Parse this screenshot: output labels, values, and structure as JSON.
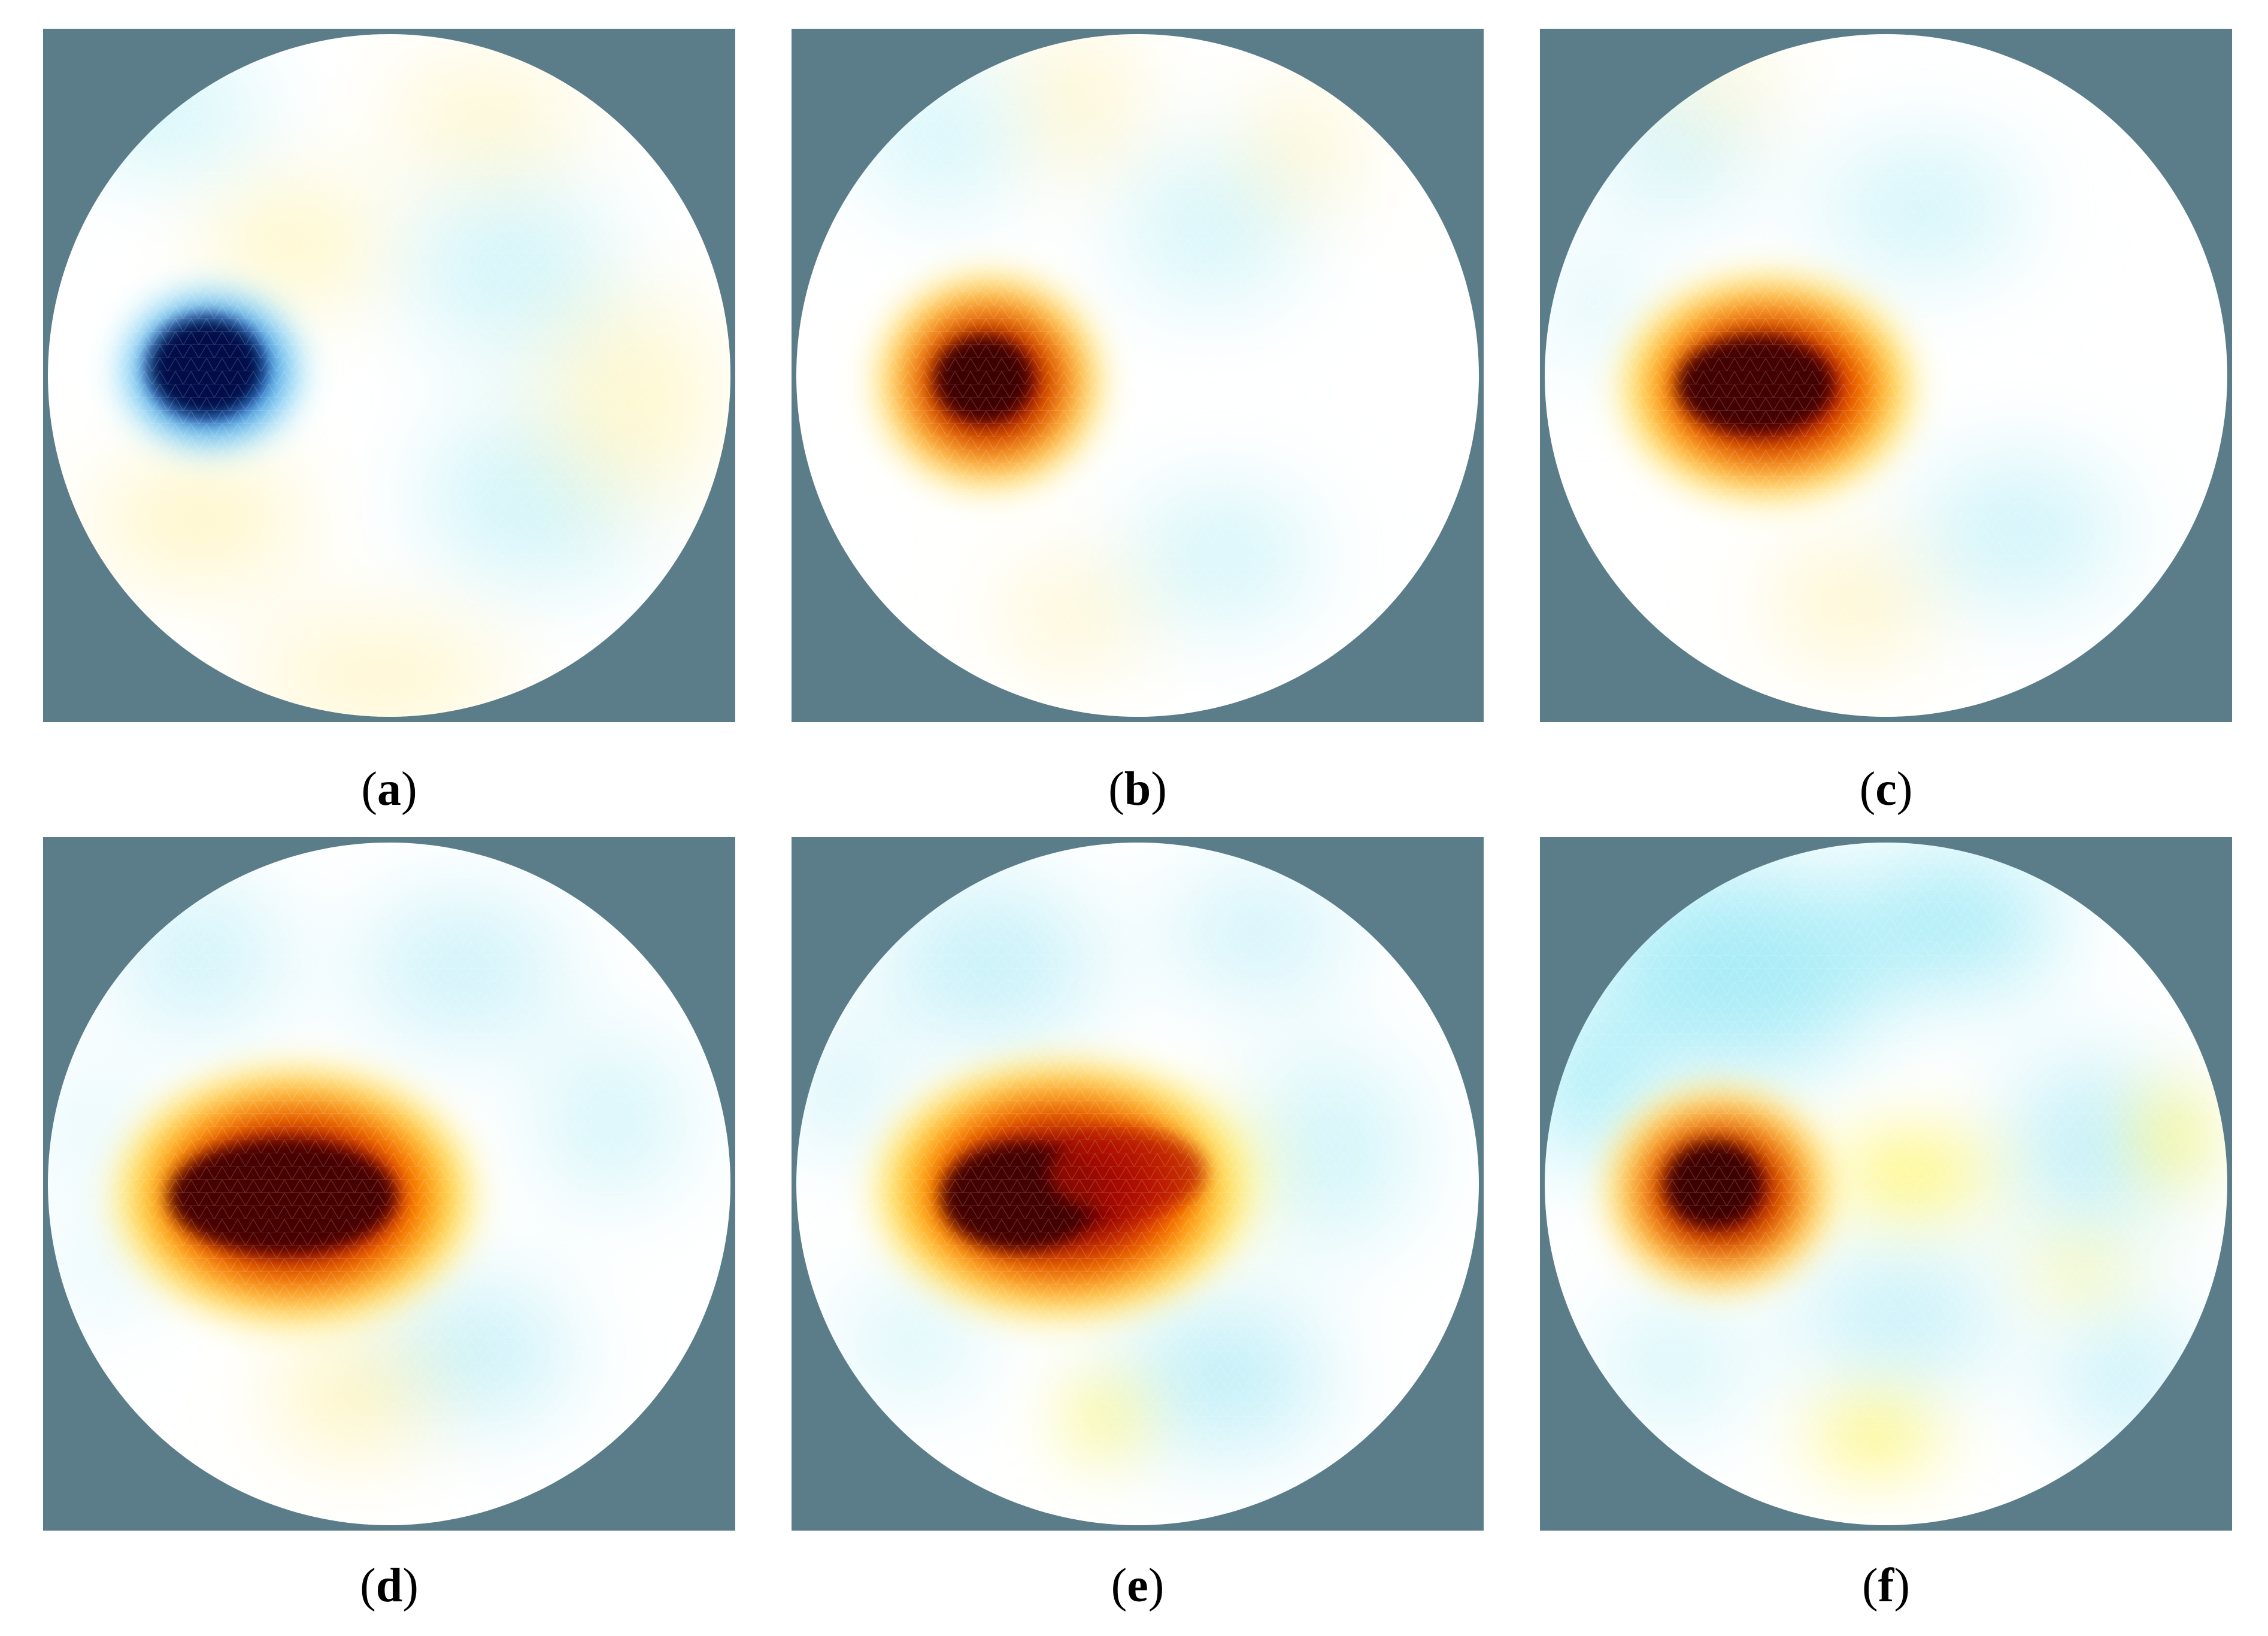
{
  "colors": {
    "background_frame": "#5B7D89",
    "domain_fill": "#FFFFFF",
    "dark_red": "#5A0000",
    "red": "#D41000",
    "orange": "#FF7A00",
    "yellow": "#FFF200",
    "pale_yellow": "#FFFBD0",
    "pale_cyan": "#D8F6FB",
    "cyan": "#6FE8F5",
    "blue": "#0A5FD8",
    "dark_blue": "#000E5C"
  },
  "panels": [
    {
      "id": "a",
      "caption": "a",
      "anomaly": "negative",
      "description_icon": "blue-anomaly-blob"
    },
    {
      "id": "b",
      "caption": "b",
      "anomaly": "positive",
      "description_icon": "red-anomaly-blob"
    },
    {
      "id": "c",
      "caption": "c",
      "anomaly": "positive",
      "description_icon": "red-anomaly-blob"
    },
    {
      "id": "d",
      "caption": "d",
      "anomaly": "positive",
      "description_icon": "red-anomaly-blob"
    },
    {
      "id": "e",
      "caption": "e",
      "anomaly": "positive",
      "description_icon": "red-anomaly-blob"
    },
    {
      "id": "f",
      "caption": "f",
      "anomaly": "positive",
      "description_icon": "red-anomaly-blob"
    }
  ]
}
